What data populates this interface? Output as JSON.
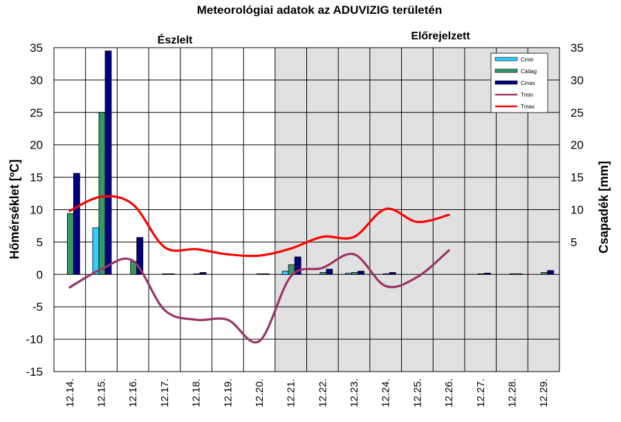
{
  "chart_data": {
    "type": "bar+line",
    "title": "Meteorológiai  adatok az ADUVIZIG  területén",
    "observed_label": "Észlelt",
    "forecast_label": "Előrejelzett",
    "forecast_start_category": "12.21.",
    "ylabel_left": "Hőmérséklet [ºC]",
    "ylabel_right": "Csapadék [mm]",
    "ylim_left": [
      -15,
      35
    ],
    "left_ticks": [
      -15,
      -10,
      -5,
      0,
      5,
      10,
      15,
      20,
      25,
      30,
      35
    ],
    "ylim_right": [
      -15,
      35
    ],
    "right_ticks": [
      5,
      10,
      15,
      20,
      25,
      30,
      35
    ],
    "categories": [
      "12.14.",
      "12.15.",
      "12.16.",
      "12.17.",
      "12.18.",
      "12.19.",
      "12.20.",
      "12.21.",
      "12.22.",
      "12.23.",
      "12.24.",
      "12.25.",
      "12.26.",
      "12.27.",
      "12.28.",
      "12.29."
    ],
    "bar_series": [
      {
        "name": "Cmin",
        "color": "#33ccff",
        "values": [
          0,
          7.2,
          0,
          0,
          0,
          0,
          0,
          0.5,
          0,
          0.2,
          0,
          0,
          0,
          0,
          0,
          0
        ]
      },
      {
        "name": "Cátlag",
        "color": "#339966",
        "values": [
          9.4,
          25,
          2,
          0.1,
          0.1,
          0,
          0.1,
          1.5,
          0.3,
          0.3,
          0.1,
          0,
          0,
          0.1,
          0.1,
          0.3
        ]
      },
      {
        "name": "Cmax",
        "color": "#000080",
        "values": [
          15.6,
          34.5,
          5.7,
          0.1,
          0.3,
          0,
          0.1,
          2.7,
          0.8,
          0.5,
          0.3,
          0,
          0,
          0.2,
          0.1,
          0.6
        ]
      }
    ],
    "line_series": [
      {
        "name": "Tmin",
        "color": "#993366",
        "values": [
          -2,
          0.8,
          2.1,
          -5.5,
          -7,
          -7,
          -10.3,
          -0.3,
          1,
          3.1,
          -1.8,
          -0.4,
          3.7
        ]
      },
      {
        "name": "Tmax",
        "color": "#ff0000",
        "values": [
          9.8,
          12,
          10.8,
          4.2,
          3.9,
          3.1,
          2.9,
          4,
          5.8,
          5.8,
          10.1,
          8.1,
          9.2
        ]
      }
    ],
    "legend_position": "top-right",
    "grid": true
  }
}
